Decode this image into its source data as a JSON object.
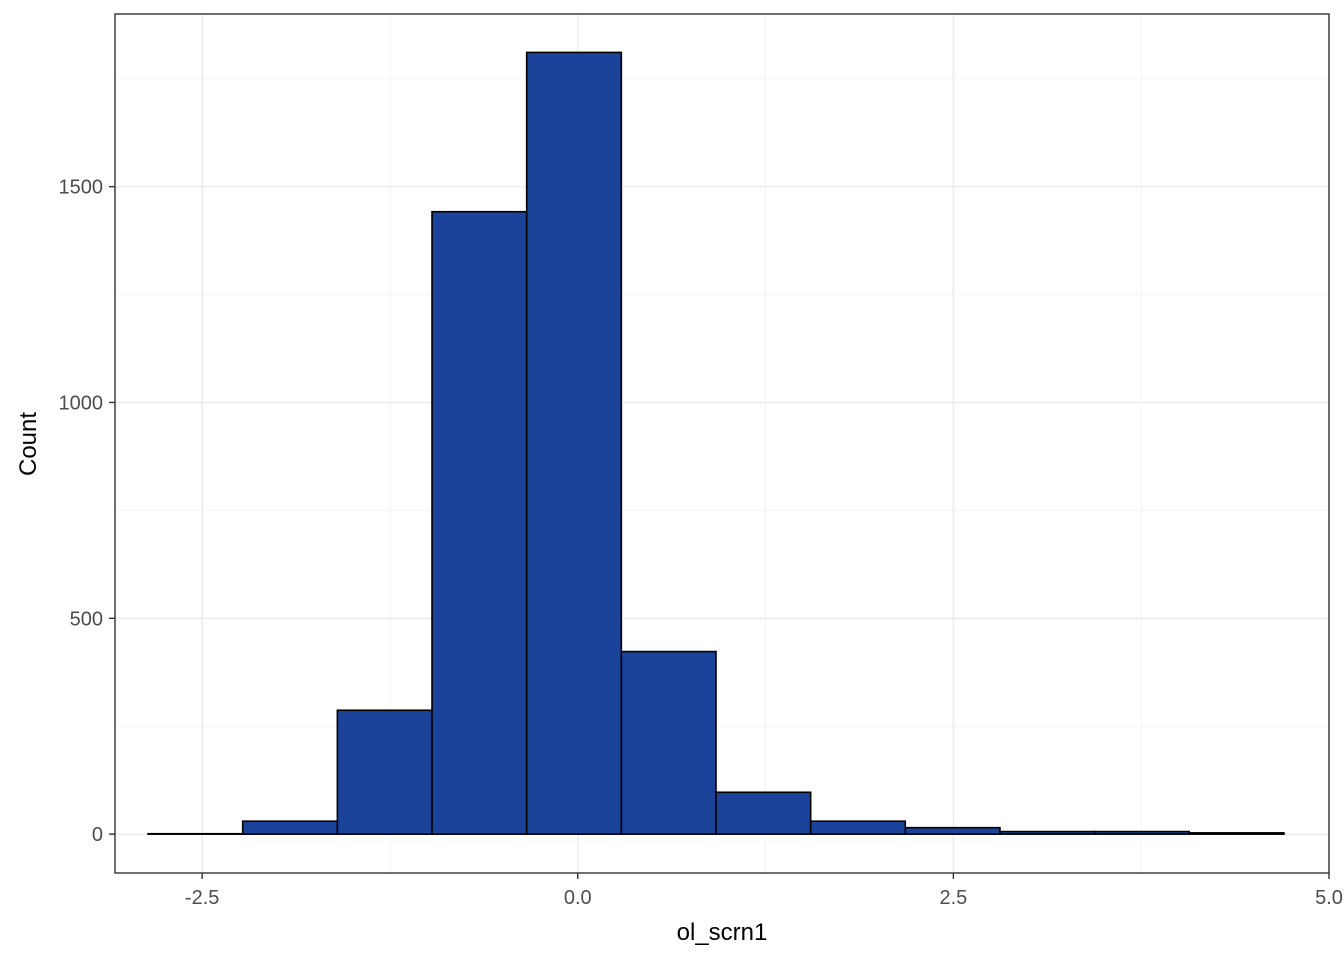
{
  "chart_data": {
    "type": "bar",
    "subtype": "histogram",
    "xlabel": "ol_scrn1",
    "ylabel": "Count",
    "xlim": [
      -3.08,
      5.0
    ],
    "ylim": [
      -90,
      1900
    ],
    "x_ticks": [
      -2.5,
      0.0,
      2.5,
      5.0
    ],
    "x_tick_labels": [
      "-2.5",
      "0.0",
      "2.5",
      "5.0"
    ],
    "y_ticks": [
      0,
      500,
      1000,
      1500
    ],
    "y_tick_labels": [
      "0",
      "500",
      "1000",
      "1500"
    ],
    "x_minor_breaks": [
      -1.25,
      1.25,
      3.75
    ],
    "y_minor_breaks": [
      250,
      750,
      1250,
      1750
    ],
    "grid": true,
    "bins": [
      {
        "x0": -2.86,
        "x1": -2.23,
        "count": 1
      },
      {
        "x0": -2.23,
        "x1": -1.6,
        "count": 30
      },
      {
        "x0": -1.6,
        "x1": -0.97,
        "count": 287
      },
      {
        "x0": -0.97,
        "x1": -0.34,
        "count": 1442
      },
      {
        "x0": -0.34,
        "x1": 0.29,
        "count": 1811
      },
      {
        "x0": 0.29,
        "x1": 0.92,
        "count": 423
      },
      {
        "x0": 0.92,
        "x1": 1.55,
        "count": 97
      },
      {
        "x0": 1.55,
        "x1": 2.18,
        "count": 30
      },
      {
        "x0": 2.18,
        "x1": 2.81,
        "count": 15
      },
      {
        "x0": 2.81,
        "x1": 3.44,
        "count": 6
      },
      {
        "x0": 3.44,
        "x1": 4.07,
        "count": 6
      },
      {
        "x0": 4.07,
        "x1": 4.7,
        "count": 3
      }
    ],
    "colors": {
      "bar_fill": "#1a4399",
      "bar_outline": "#000000",
      "panel_background": "#ffffff",
      "grid_major": "#ebebeb",
      "grid_minor": "#f5f5f5",
      "panel_border": "#333333"
    }
  }
}
